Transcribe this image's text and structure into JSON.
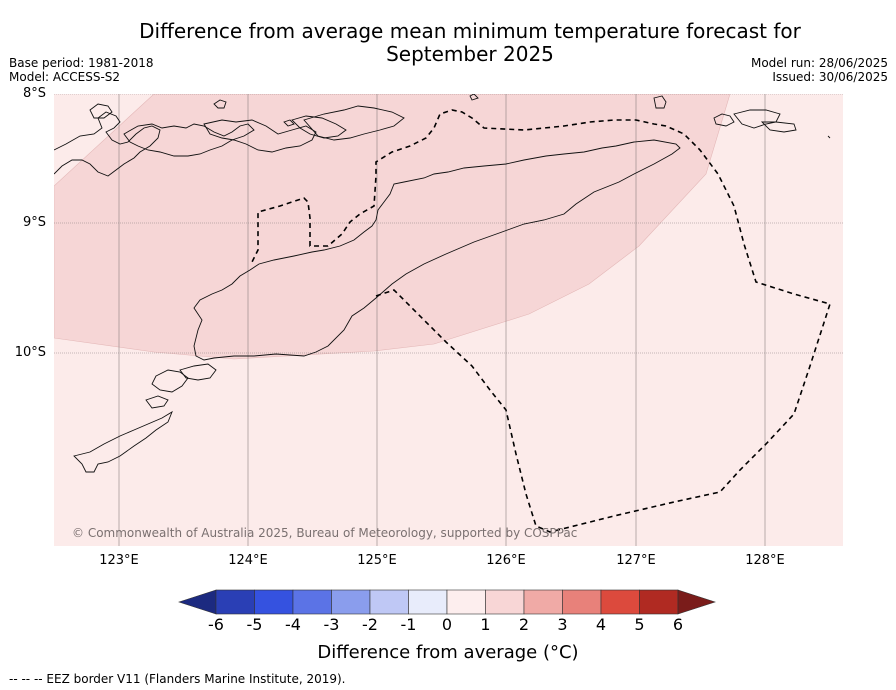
{
  "title_line1": "Difference from average mean minimum temperature forecast for",
  "title_line2": "September 2025",
  "base_period": "Base period: 1981-2018",
  "model": "Model: ACCESS-S2",
  "model_run": "Model run: 28/06/2025",
  "issued": "Issued: 30/06/2025",
  "latitudes": [
    "8°S",
    "9°S",
    "10°S"
  ],
  "longitudes": [
    "123°E",
    "124°E",
    "125°E",
    "126°E",
    "127°E",
    "128°E"
  ],
  "copyright": "© Commonwealth of Australia 2025, Bureau of Meteorology, supported by COSPPac",
  "colorbar": {
    "ticks": [
      "-6",
      "-5",
      "-4",
      "-3",
      "-2",
      "-1",
      "0",
      "1",
      "2",
      "3",
      "4",
      "5",
      "6"
    ],
    "colors": [
      "#1c2a80",
      "#2a3fb5",
      "#3552e0",
      "#5b73e6",
      "#8a9ded",
      "#bfc8f5",
      "#e8ecfb",
      "#fdeeee",
      "#f8d6d6",
      "#f0aaa6",
      "#e8817a",
      "#dc4a3d",
      "#b02a22",
      "#7a1c1a"
    ],
    "label": "Difference from average (°C)"
  },
  "footnote": "-- -- -- EEZ border V11 (Flanders Marine Institute, 2019).",
  "map_data": {
    "extent_lon": [
      122.5,
      128.6
    ],
    "extent_lat": [
      -11.5,
      -8.0
    ],
    "anomaly_regions": [
      {
        "category": "0 to 1",
        "color": "#fcebea"
      },
      {
        "category": "1 to 2",
        "color": "#f6d6d6"
      }
    ]
  }
}
